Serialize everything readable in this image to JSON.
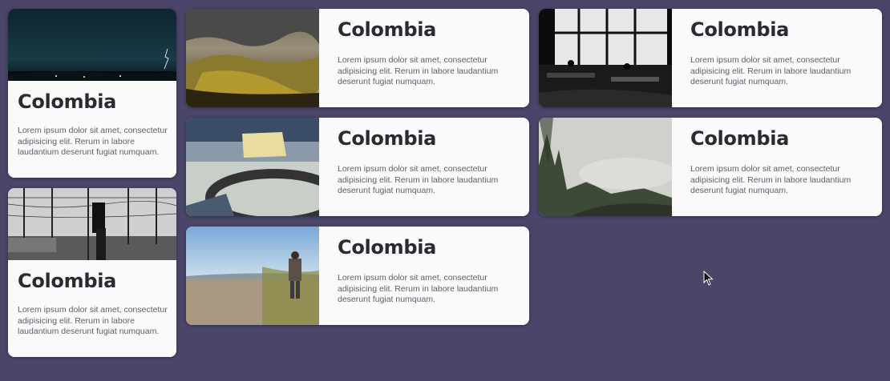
{
  "cards": [
    {
      "title": "Colombia",
      "description": "Lorem ipsum dolor sit amet, consectetur adipisicing elit. Rerum in labore laudantium deserunt fugiat numquam.",
      "image": "night-storm-lightning-photo"
    },
    {
      "title": "Colombia",
      "description": "Lorem ipsum dolor sit amet, consectetur adipisicing elit. Rerum in labore laudantium deserunt fugiat numquam.",
      "image": "railway-overhead-wires-photo"
    },
    {
      "title": "Colombia",
      "description": "Lorem ipsum dolor sit amet, consectetur adipisicing elit. Rerum in labore laudantium deserunt fugiat numquam.",
      "image": "mountain-valley-clouds-photo"
    },
    {
      "title": "Colombia",
      "description": "Lorem ipsum dolor sit amet, consectetur adipisicing elit. Rerum in labore laudantium deserunt fugiat numquam.",
      "image": "vinyl-record-player-photo"
    },
    {
      "title": "Colombia",
      "description": "Lorem ipsum dolor sit amet, consectetur adipisicing elit. Rerum in labore laudantium deserunt fugiat numquam.",
      "image": "beach-walker-photo"
    },
    {
      "title": "Colombia",
      "description": "Lorem ipsum dolor sit amet, consectetur adipisicing elit. Rerum in labore laudantium deserunt fugiat numquam.",
      "image": "cafe-window-silhouettes-photo"
    },
    {
      "title": "Colombia",
      "description": "Lorem ipsum dolor sit amet, consectetur adipisicing elit. Rerum in labore laudantium deserunt fugiat numquam.",
      "image": "foggy-forest-photo"
    }
  ],
  "colors": {
    "background": "#4a4569",
    "card": "#fafafa",
    "title": "#2a2a33",
    "text": "#5e5e6a"
  },
  "cursor": "mouse-pointer-icon"
}
